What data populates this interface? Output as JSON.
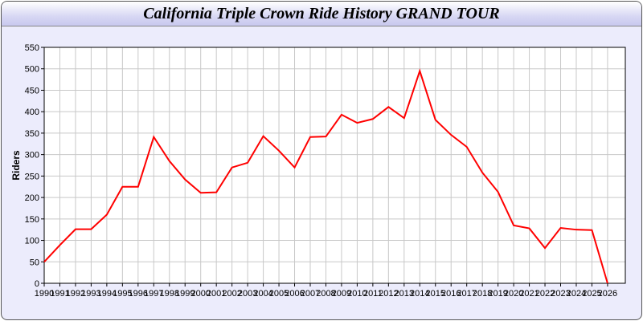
{
  "chart_data": {
    "type": "line",
    "title": "California Triple Crown Ride History GRAND TOUR",
    "xlabel": "",
    "ylabel": "Riders",
    "ylim": [
      0,
      550
    ],
    "yticks": [
      0,
      50,
      100,
      150,
      200,
      250,
      300,
      350,
      400,
      450,
      500,
      550
    ],
    "grid": true,
    "line_color": "#ff0000",
    "x": [
      1990,
      1991,
      1992,
      1993,
      1994,
      1995,
      1996,
      1997,
      1998,
      1999,
      2000,
      2001,
      2002,
      2003,
      2004,
      2005,
      2006,
      2007,
      2008,
      2009,
      2010,
      2011,
      2012,
      2013,
      2014,
      2015,
      2016,
      2017,
      2018,
      2019,
      2020,
      2021,
      2022,
      2023,
      2024,
      2025,
      2026
    ],
    "series": [
      {
        "values": [
          50,
          89,
          126,
          126,
          160,
          225,
          225,
          341,
          285,
          242,
          211,
          212,
          270,
          281,
          343,
          309,
          270,
          341,
          342,
          393,
          374,
          383,
          411,
          385,
          495,
          381,
          346,
          318,
          258,
          213,
          135,
          128,
          82,
          129,
          125,
          124,
          0
        ]
      }
    ]
  }
}
